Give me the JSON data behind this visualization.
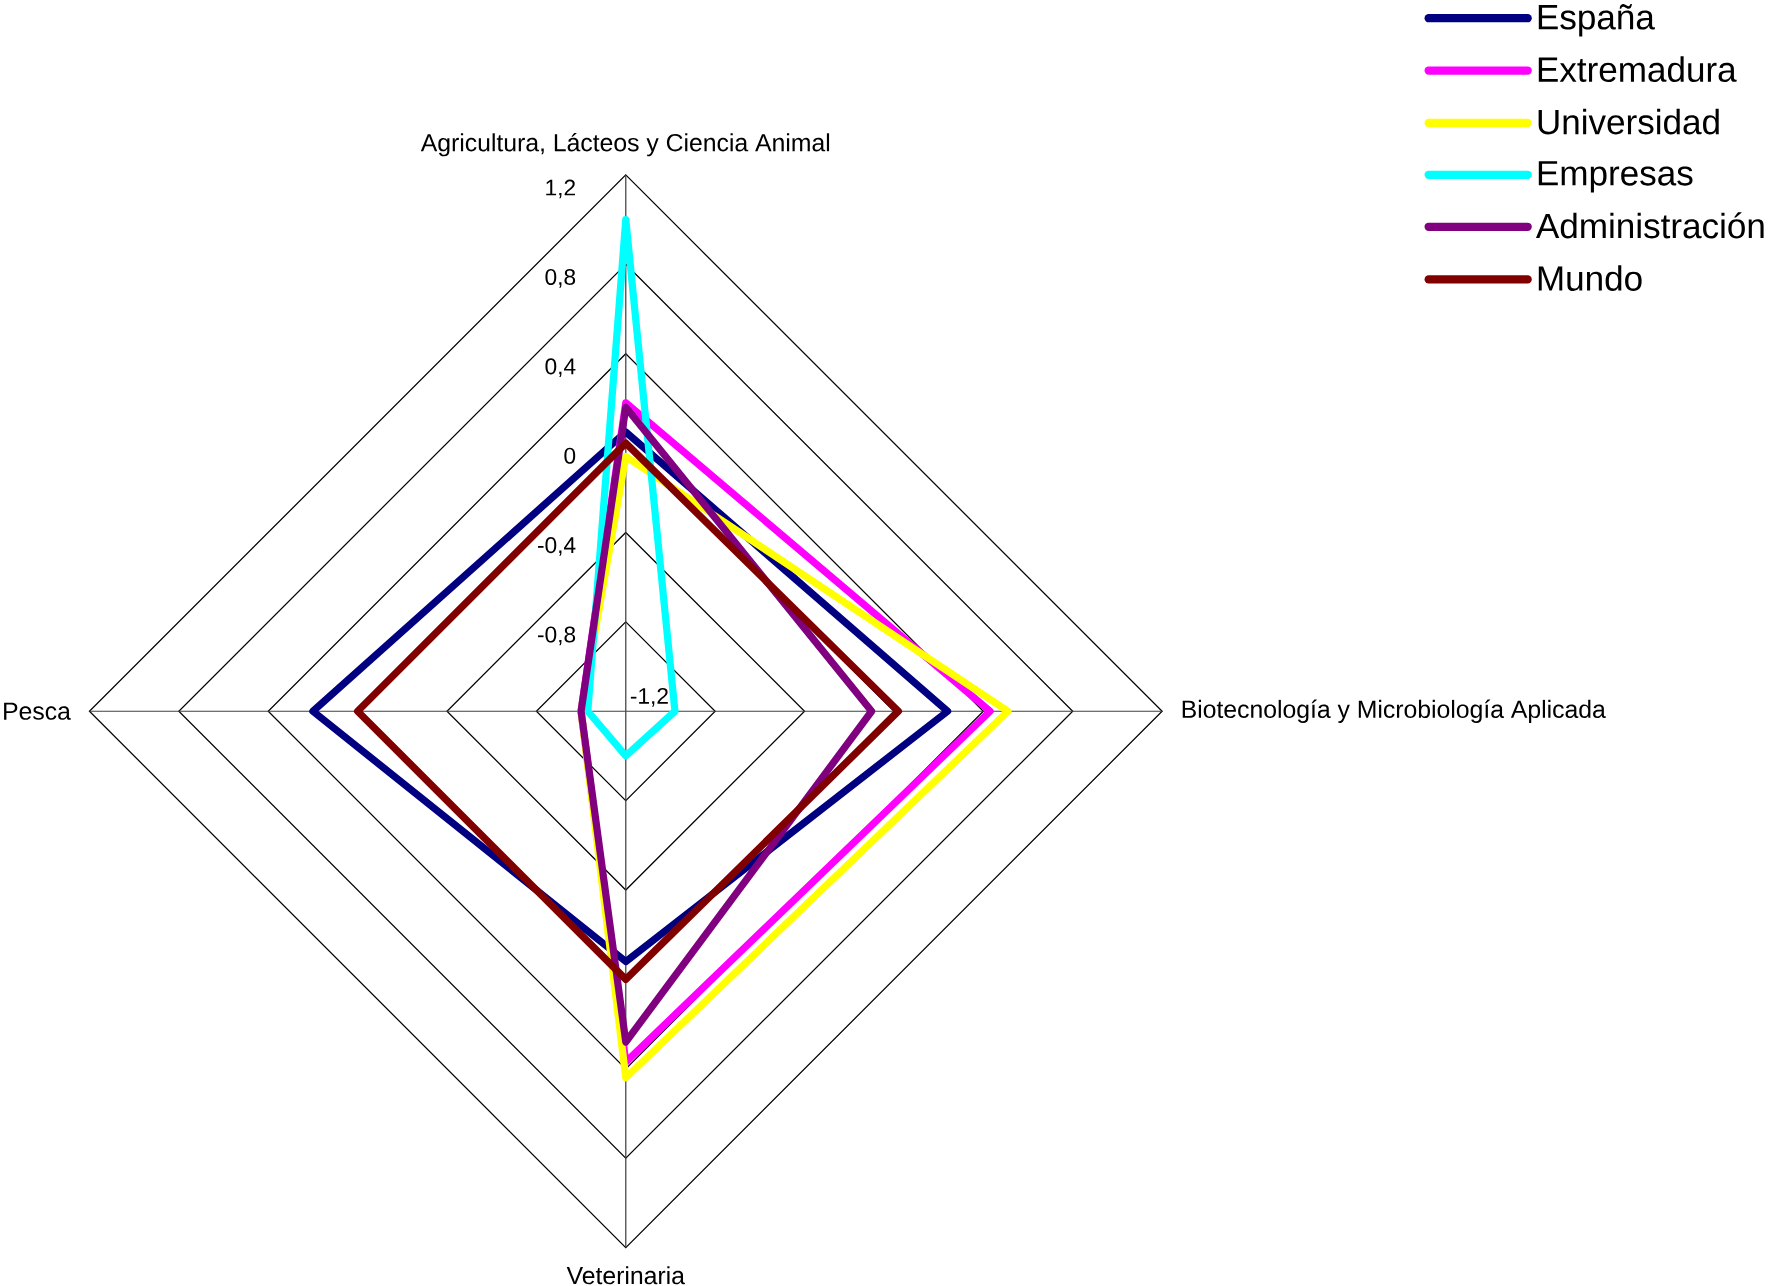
{
  "chart_data": {
    "type": "radar",
    "categories": [
      "Agricultura, Lácteos y Ciencia Animal",
      "Biotecnología y Microbiología Aplicada",
      "Veterinaria",
      "Pesca"
    ],
    "series": [
      {
        "name": "España",
        "color": "#000080",
        "values": [
          0.05,
          0.24,
          -0.08,
          0.2
        ]
      },
      {
        "name": "Extremadura",
        "color": "#ff00ff",
        "values": [
          0.18,
          0.43,
          0.37,
          -1.0
        ]
      },
      {
        "name": "Universidad",
        "color": "#ffff00",
        "values": [
          -0.06,
          0.51,
          0.44,
          -1.0
        ]
      },
      {
        "name": "Empresas",
        "color": "#00ffff",
        "values": [
          1.0,
          -0.98,
          -1.0,
          -1.03
        ]
      },
      {
        "name": "Administración",
        "color": "#800080",
        "values": [
          0.16,
          -0.1,
          0.28,
          -1.0
        ]
      },
      {
        "name": "Mundo",
        "color": "#800000",
        "values": [
          0.0,
          0.02,
          0.0,
          0.0
        ]
      }
    ],
    "ylim": [
      -1.2,
      1.2
    ],
    "yticks": [
      {
        "value": -1.2,
        "label": "-1,2"
      },
      {
        "value": -0.8,
        "label": "-0,8"
      },
      {
        "value": -0.4,
        "label": "-0,4"
      },
      {
        "value": 0,
        "label": "0"
      },
      {
        "value": 0.4,
        "label": "0,4"
      },
      {
        "value": 0.8,
        "label": "0,8"
      },
      {
        "value": 1.2,
        "label": "1,2"
      }
    ],
    "grid": true,
    "legend": "top right",
    "marker": "none",
    "line_style": "solid"
  }
}
